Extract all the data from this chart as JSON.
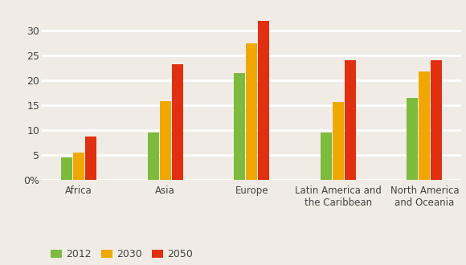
{
  "categories": [
    "Africa",
    "Asia",
    "Europe",
    "Latin America and\nthe Caribbean",
    "North America\nand Oceania"
  ],
  "series": {
    "2012": [
      4.5,
      9.5,
      21.5,
      9.5,
      16.5
    ],
    "2030": [
      5.5,
      15.8,
      27.5,
      15.7,
      21.8
    ],
    "2050": [
      8.8,
      23.2,
      32.0,
      24.0,
      24.0
    ]
  },
  "colors": {
    "2012": "#7cbb3c",
    "2030": "#f0a800",
    "2050": "#e03010"
  },
  "ylim": [
    0,
    34
  ],
  "yticks": [
    0,
    5,
    10,
    15,
    20,
    25,
    30
  ],
  "ytick_labels": [
    "0%",
    "5",
    "10",
    "15",
    "20",
    "25",
    "30"
  ],
  "legend_labels": [
    "2012",
    "2030",
    "2050"
  ],
  "bar_width": 0.13,
  "background_color": "#f0ebe4",
  "grid_color": "#ffffff",
  "grid_linewidth": 2.0,
  "xlabel_fontsize": 8.5,
  "ylabel_fontsize": 9,
  "legend_fontsize": 9
}
